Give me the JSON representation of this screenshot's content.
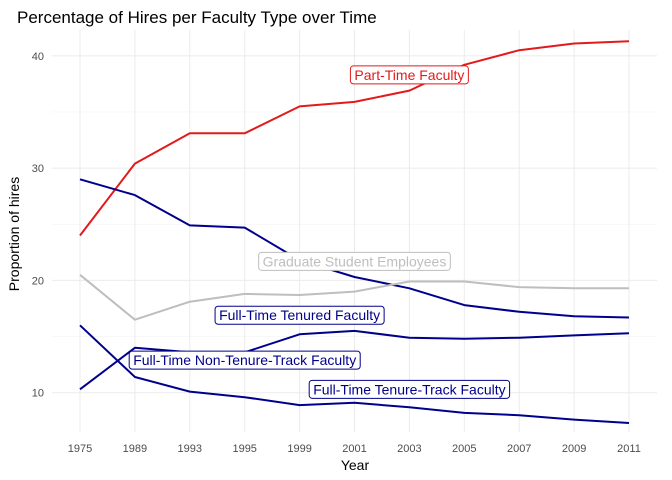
{
  "chart_data": {
    "type": "line",
    "title": "Percentage of Hires per Faculty Type over Time",
    "xlabel": "Year",
    "ylabel": "Proportion of hires",
    "x": [
      "1975",
      "1989",
      "1993",
      "1995",
      "1999",
      "2001",
      "2003",
      "2005",
      "2007",
      "2009",
      "2011"
    ],
    "ylim": [
      6.5,
      42.3
    ],
    "yticks": [
      10,
      20,
      30,
      40
    ],
    "grid": true,
    "legend": "none (direct labels)",
    "series": [
      {
        "name": "Part-Time Faculty",
        "color": "#e31a1c",
        "values": [
          24.0,
          30.4,
          33.1,
          33.1,
          35.5,
          35.9,
          36.9,
          39.2,
          40.5,
          41.1,
          41.3
        ]
      },
      {
        "name": "Full-Time Tenured Faculty",
        "color": "#00008b",
        "values": [
          29.0,
          27.6,
          24.9,
          24.7,
          21.8,
          20.3,
          19.3,
          17.8,
          17.2,
          16.8,
          16.7
        ]
      },
      {
        "name": "Graduate Student Employees",
        "color": "#bebebe",
        "values": [
          20.5,
          16.5,
          18.1,
          18.8,
          18.7,
          19.0,
          19.9,
          19.9,
          19.4,
          19.3,
          19.3
        ]
      },
      {
        "name": "Full-Time Non-Tenure-Track Faculty",
        "color": "#00008b",
        "values": [
          10.3,
          14.0,
          13.6,
          13.6,
          15.2,
          15.5,
          14.9,
          14.8,
          14.9,
          15.1,
          15.3
        ]
      },
      {
        "name": "Full-Time Tenure-Track Faculty",
        "color": "#00008b",
        "values": [
          16.0,
          11.4,
          10.1,
          9.6,
          8.9,
          9.1,
          8.7,
          8.2,
          8.0,
          7.6,
          7.3
        ]
      }
    ],
    "labels": [
      {
        "text": "Part-Time Faculty",
        "color": "#e31a1c",
        "x": "2003",
        "y": 38.3
      },
      {
        "text": "Graduate Student Employees",
        "color": "#bebebe",
        "x": "2001",
        "y": 21.7
      },
      {
        "text": "Full-Time Tenured Faculty",
        "color": "#00008b",
        "x": "1999",
        "y": 16.9
      },
      {
        "text": "Full-Time Non-Tenure-Track Faculty",
        "color": "#00008b",
        "x": "1995",
        "y": 12.9
      },
      {
        "text": "Full-Time Tenure-Track Faculty",
        "color": "#00008b",
        "x": "2003",
        "y": 10.3
      }
    ]
  }
}
